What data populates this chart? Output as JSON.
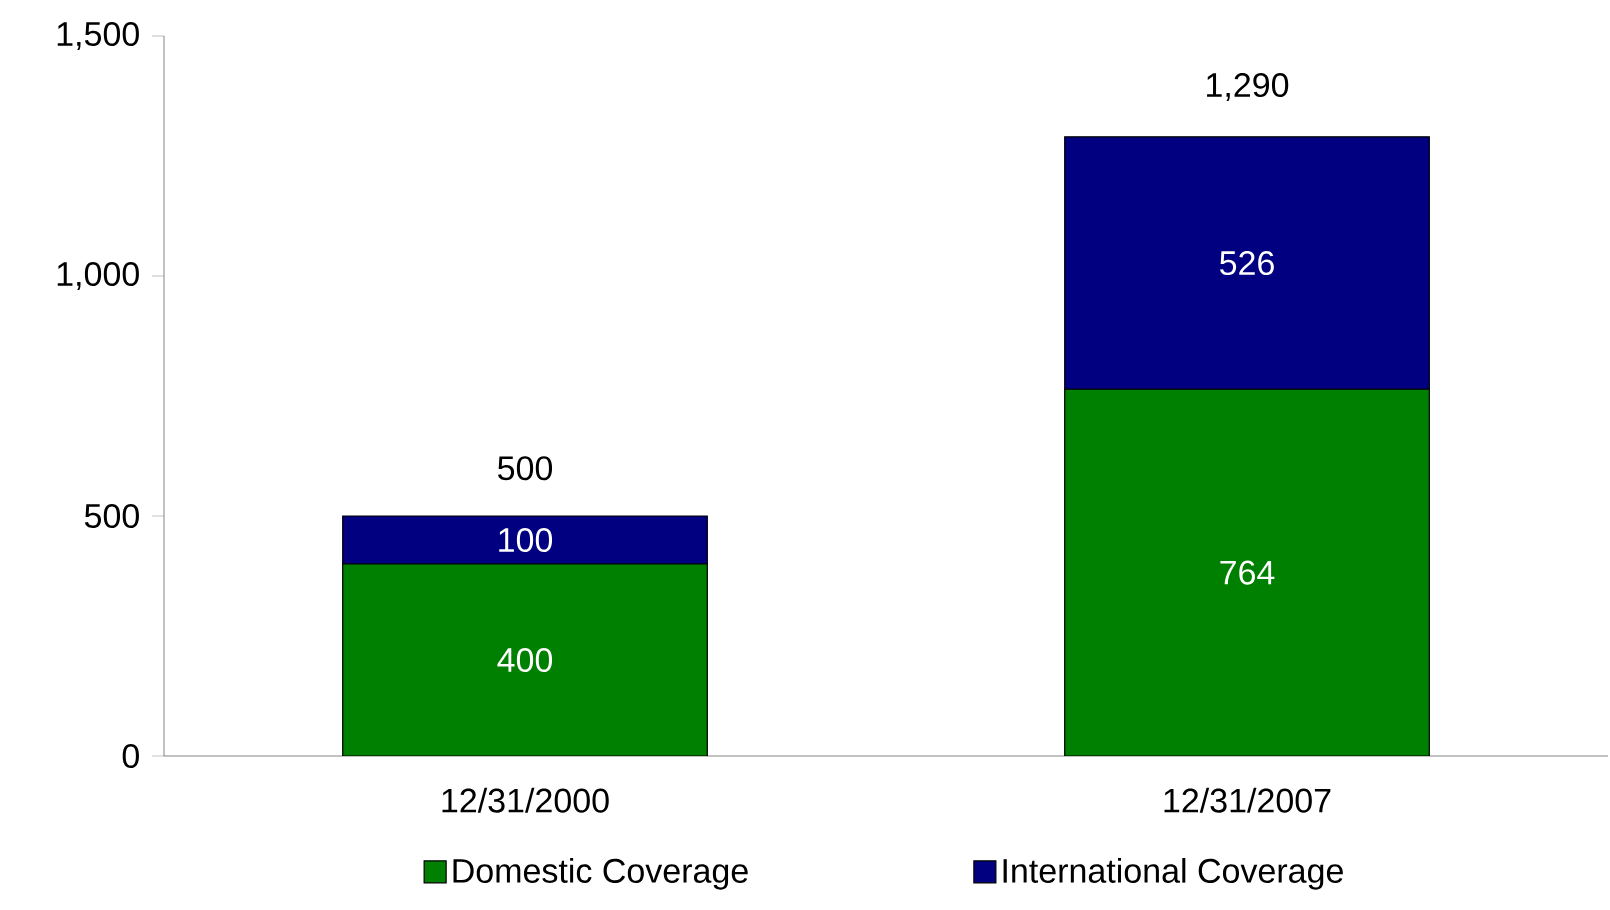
{
  "chart_data": {
    "type": "bar",
    "stacked": true,
    "categories": [
      "12/31/2000",
      "12/31/2007"
    ],
    "series": [
      {
        "name": "Domestic Coverage",
        "color": "#008000",
        "values": [
          400,
          764
        ]
      },
      {
        "name": "International Coverage",
        "color": "#000080",
        "values": [
          100,
          526
        ]
      }
    ],
    "totals": [
      "500",
      "1,290"
    ],
    "data_labels": true,
    "ylim": [
      0,
      1500
    ],
    "yticks": [
      0,
      {
        "value": 500,
        "label": "500"
      },
      {
        "value": 1000,
        "label": "1,000"
      },
      {
        "value": 1500,
        "label": "1,500"
      }
    ],
    "grid": false,
    "legend": "bottom"
  }
}
